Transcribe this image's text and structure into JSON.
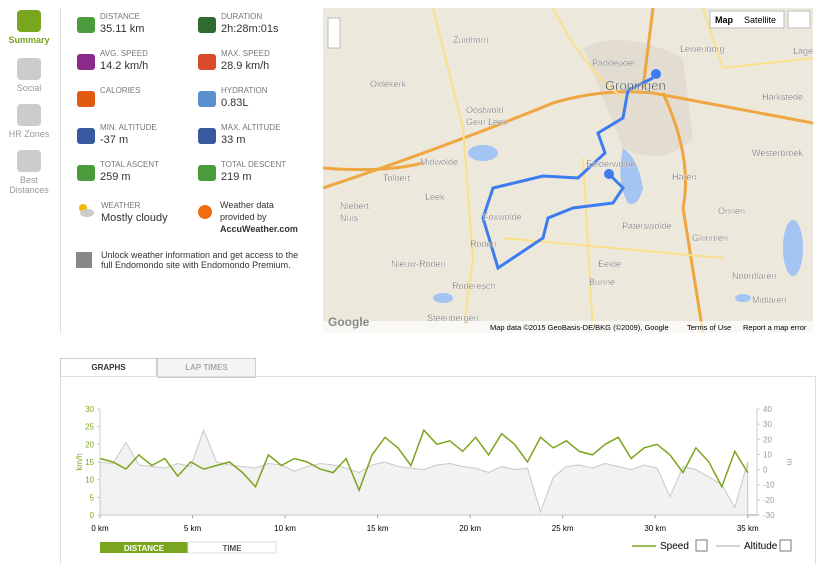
{
  "sidebar": [
    "Summary",
    "Social",
    "HR Zones",
    "Best Distances"
  ],
  "stats": [
    {
      "label": "DISTANCE",
      "value": "35.11 km"
    },
    {
      "label": "DURATION",
      "value": "2h:28m:01s"
    },
    {
      "label": "AVG. SPEED",
      "value": "14.2 km/h"
    },
    {
      "label": "MAX. SPEED",
      "value": "28.9 km/h"
    },
    {
      "label": "CALORIES"
    },
    {
      "label": "HYDRATION",
      "value": "0.83L"
    },
    {
      "label": "MIN. ALTITUDE",
      "value": "-37 m"
    },
    {
      "label": "MAX. ALTITUDE",
      "value": "33 m"
    },
    {
      "label": "TOTAL ASCENT",
      "value": "259 m"
    },
    {
      "label": "TOTAL DESCENT",
      "value": "219 m"
    }
  ],
  "weather": {
    "label": "WEATHER",
    "value": "Mostly cloudy",
    "provider": "Weather data provided by",
    "provider_name": "AccuWeather.com"
  },
  "premium": "Unlock weather information and get access to the full Endomondo site with Endomondo Premium.",
  "map": {
    "buttons": [
      "Map",
      "Satellite"
    ],
    "places": [
      "Zuidhorn",
      "Paddepoel",
      "Lewenborg",
      "Groningen",
      "Oldekerk",
      "Oostwold",
      "Gem Leek",
      "Harkstede",
      "Midwolde",
      "Tolbert",
      "Leek",
      "Westerbroek",
      "Eelderwolde",
      "Haren",
      "Niebert",
      "Nuis",
      "Foxwolde",
      "Onnen",
      "Paterswolde",
      "Glimmen",
      "Roden",
      "Nieuw-Roden",
      "Eelde",
      "Noordlaren",
      "Bunne",
      "Roderesch",
      "Midlaren",
      "Steenbergen",
      "Lagel"
    ],
    "logo": "Google",
    "attribution": "Map data ©2015 GeoBasis-DE/BKG (©2009), Google",
    "terms": "Terms of Use",
    "report": "Report a map error"
  },
  "tabs": [
    "GRAPHS",
    "LAP TIMES"
  ],
  "chart_data": {
    "type": "line",
    "ylabel": "km/h",
    "y2label": "m",
    "x": [
      0,
      0.7,
      1.4,
      2.1,
      2.8,
      3.5,
      4.2,
      4.9,
      5.6,
      6.3,
      7,
      7.7,
      8.4,
      9.1,
      9.8,
      10.5,
      11.2,
      11.9,
      12.6,
      13.3,
      14,
      14.7,
      15.4,
      16.1,
      16.8,
      17.5,
      18.2,
      18.9,
      19.6,
      20.3,
      21,
      21.7,
      22.4,
      23.1,
      23.8,
      24.5,
      25.2,
      25.9,
      26.6,
      27.3,
      28,
      28.7,
      29.4,
      30.1,
      30.8,
      31.5,
      32.2,
      32.9,
      33.6,
      34.3,
      35
    ],
    "series": [
      {
        "name": "Speed",
        "color": "#7aa51e",
        "values": [
          16,
          15,
          13,
          17,
          14,
          16,
          11,
          15,
          13,
          14,
          15,
          12,
          8,
          17,
          14,
          16,
          15,
          13,
          12,
          16,
          7,
          17,
          22,
          19,
          14,
          24,
          20,
          21,
          18,
          22,
          17,
          23,
          20,
          15,
          22,
          19,
          21,
          18,
          17,
          20,
          22,
          16,
          19,
          20,
          17,
          12,
          19,
          15,
          8,
          18,
          12
        ]
      },
      {
        "name": "Altitude",
        "color": "#c8c8c8",
        "axis": "y2",
        "values": [
          5,
          4,
          18,
          3,
          2,
          1,
          4,
          2,
          26,
          5,
          3,
          2,
          1,
          4,
          3,
          -1,
          2,
          4,
          3,
          1,
          -2,
          3,
          5,
          2,
          1,
          0,
          3,
          4,
          2,
          1,
          -2,
          2,
          0,
          1,
          -28,
          -5,
          2,
          3,
          1,
          4,
          2,
          0,
          3,
          1,
          -18,
          2,
          0,
          -5,
          -10,
          -25,
          5
        ]
      }
    ],
    "xlim": [
      0,
      35.5
    ],
    "xticks": [
      {
        "value": 0,
        "label": "0 km"
      },
      {
        "value": 5,
        "label": "5 km"
      },
      {
        "value": 10,
        "label": "10 km"
      },
      {
        "value": 15,
        "label": "15 km"
      },
      {
        "value": 20,
        "label": "20 km"
      },
      {
        "value": 25,
        "label": "25 km"
      },
      {
        "value": 30,
        "label": "30 km"
      },
      {
        "value": 35,
        "label": "35 km"
      }
    ],
    "ylim": [
      0,
      30
    ],
    "yticks": [
      0,
      5,
      10,
      15,
      20,
      25,
      30
    ],
    "y2lim": [
      -30,
      40
    ],
    "y2ticks": [
      -30,
      -20,
      -10,
      0,
      10,
      20,
      30,
      40
    ],
    "grid": false
  },
  "toggle": [
    "DISTANCE",
    "TIME"
  ]
}
